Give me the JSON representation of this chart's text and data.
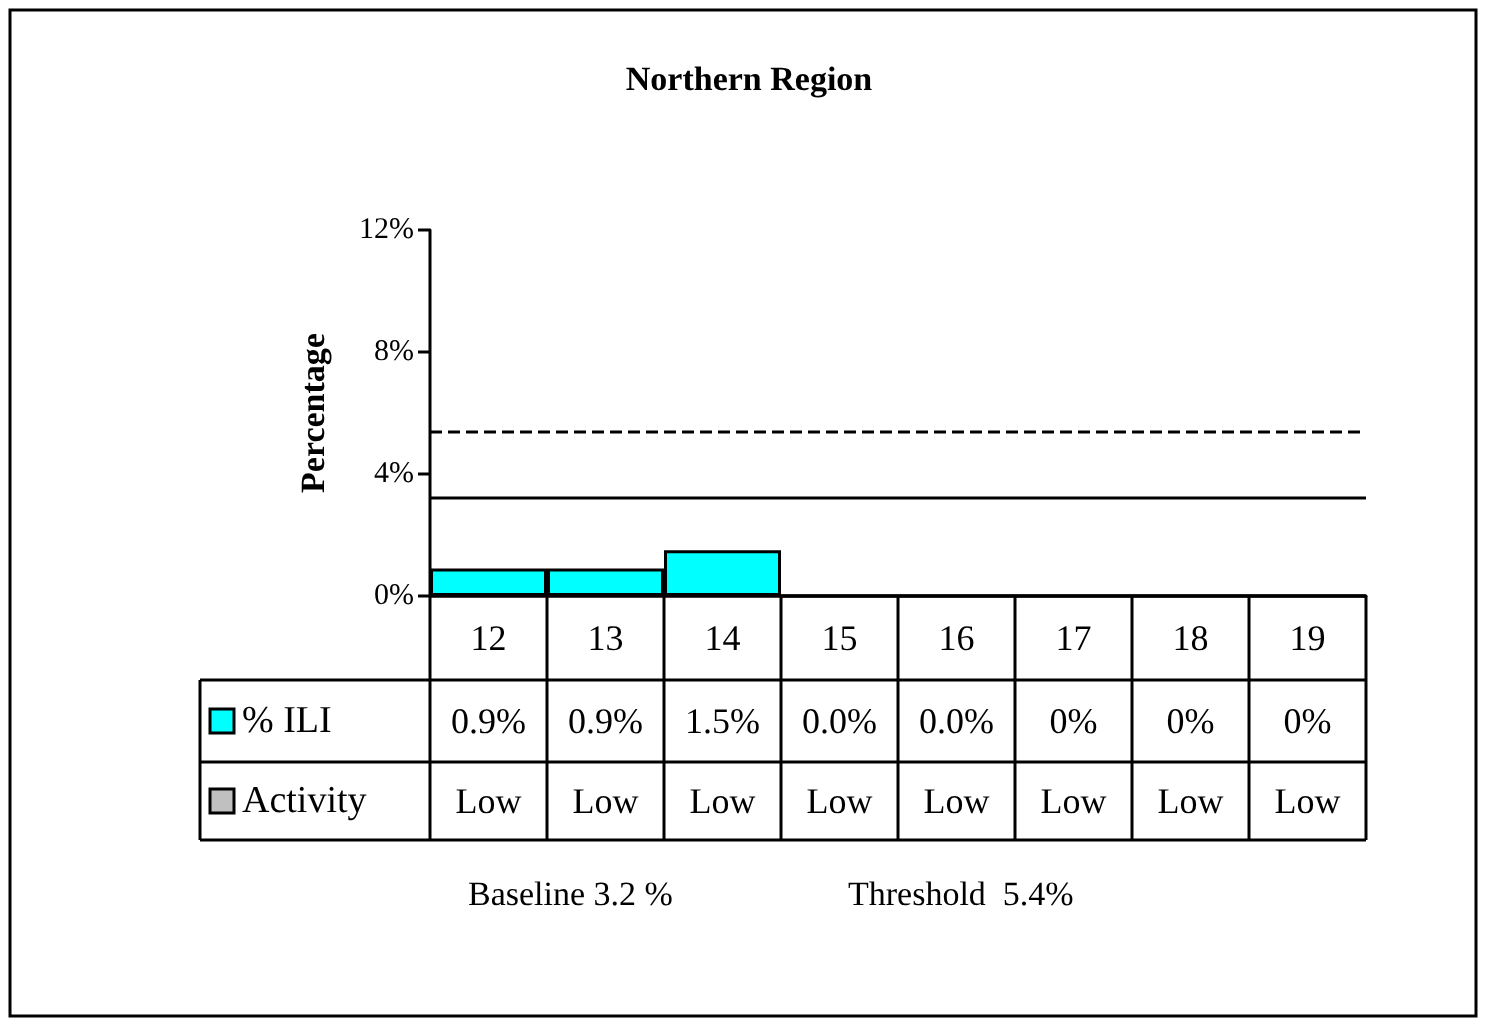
{
  "chart_data": {
    "type": "bar",
    "title": "Northern Region",
    "ylabel": "Percentage",
    "categories": [
      "12",
      "13",
      "14",
      "15",
      "16",
      "17",
      "18",
      "19"
    ],
    "series": [
      {
        "name": "% ILI",
        "color": "#00ffff",
        "values": [
          0.9,
          0.9,
          1.5,
          0.0,
          0.0,
          0,
          0,
          0
        ],
        "value_labels": [
          "0.9%",
          "0.9%",
          "1.5%",
          "0.0%",
          "0.0%",
          "0%",
          "0%",
          "0%"
        ]
      },
      {
        "name": "Activity",
        "color": "#c0c0c0",
        "values": [
          null,
          null,
          null,
          null,
          null,
          null,
          null,
          null
        ],
        "value_labels": [
          "Low",
          "Low",
          "Low",
          "Low",
          "Low",
          "Low",
          "Low",
          "Low"
        ]
      }
    ],
    "ylim": [
      0,
      12
    ],
    "yticks": [
      {
        "value": 0,
        "label": "0%"
      },
      {
        "value": 4,
        "label": "4%"
      },
      {
        "value": 8,
        "label": "8%"
      },
      {
        "value": 12,
        "label": "12%"
      }
    ],
    "ref_lines": [
      {
        "axis": "y",
        "value": 3.2,
        "line_style": "solid",
        "color": "#000000"
      },
      {
        "axis": "y",
        "value": 5.4,
        "line_style": "dashed",
        "color": "#000000"
      }
    ],
    "annotations": [
      "Baseline 3.2 %",
      "Threshold  5.4%"
    ],
    "legend": "bottom left",
    "grid": false
  }
}
